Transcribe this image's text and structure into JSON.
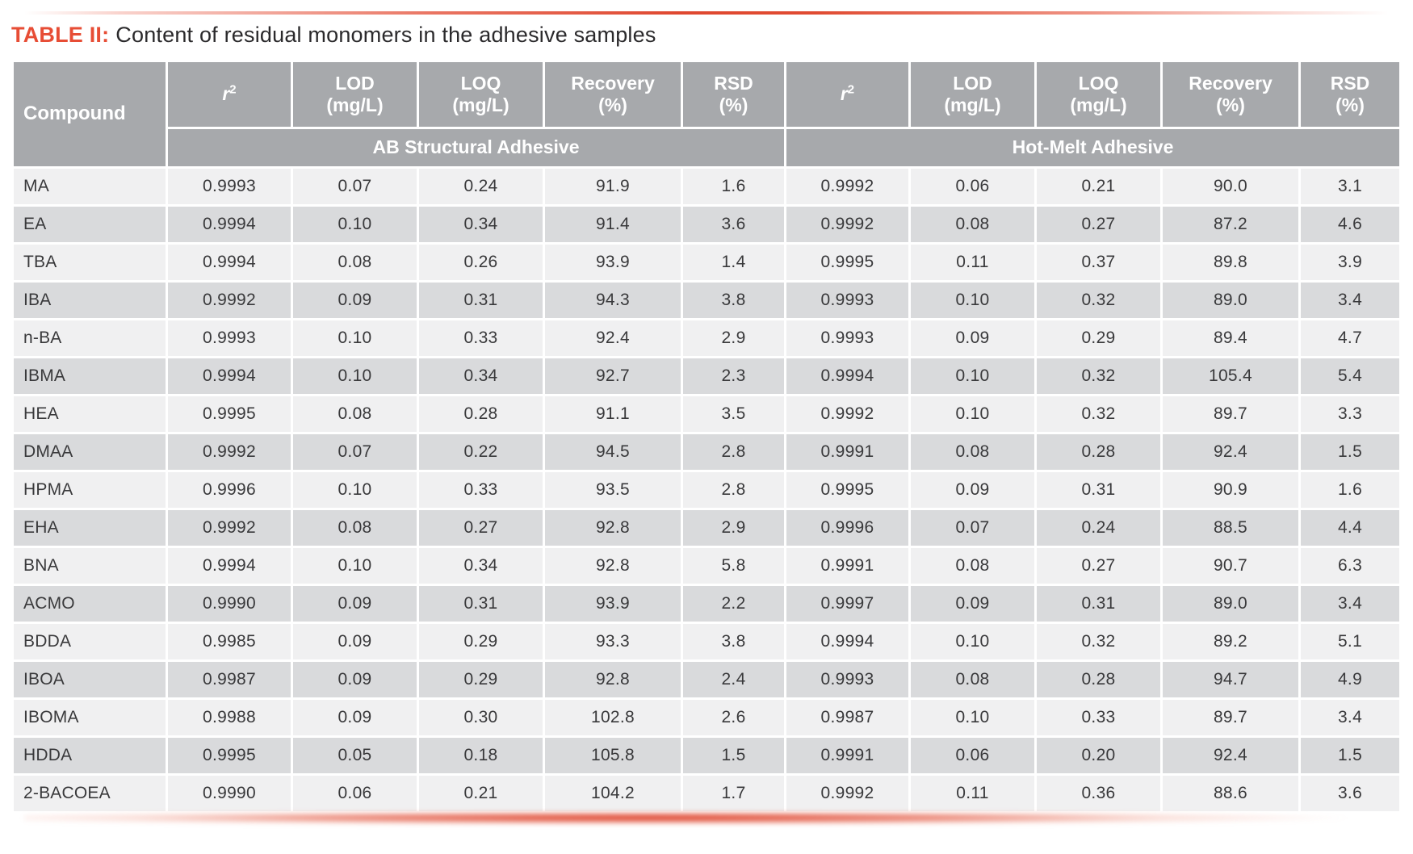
{
  "caption": {
    "label": "TABLE II:",
    "text": "Content of residual monomers in the adhesive samples"
  },
  "colors": {
    "accent_red": "#e74d35",
    "header_bg": "#a7a9ac",
    "row_light": "#f0f0f1",
    "row_dark": "#d9dadc",
    "body_text": "#39393b"
  },
  "table": {
    "headers": {
      "compound": "Compound",
      "r2_base": "r",
      "r2_sup": "2",
      "lod": "LOD\n(mg/L)",
      "loq": "LOQ\n(mg/L)",
      "recovery": "Recovery\n(%)",
      "rsd": "RSD\n(%)"
    },
    "groups": [
      "AB Structural Adhesive",
      "Hot-Melt Adhesive"
    ],
    "rows": [
      {
        "compound": "MA",
        "ab": [
          "0.9993",
          "0.07",
          "0.24",
          "91.9",
          "1.6"
        ],
        "hm": [
          "0.9992",
          "0.06",
          "0.21",
          "90.0",
          "3.1"
        ]
      },
      {
        "compound": "EA",
        "ab": [
          "0.9994",
          "0.10",
          "0.34",
          "91.4",
          "3.6"
        ],
        "hm": [
          "0.9992",
          "0.08",
          "0.27",
          "87.2",
          "4.6"
        ]
      },
      {
        "compound": "TBA",
        "ab": [
          "0.9994",
          "0.08",
          "0.26",
          "93.9",
          "1.4"
        ],
        "hm": [
          "0.9995",
          "0.11",
          "0.37",
          "89.8",
          "3.9"
        ]
      },
      {
        "compound": "IBA",
        "ab": [
          "0.9992",
          "0.09",
          "0.31",
          "94.3",
          "3.8"
        ],
        "hm": [
          "0.9993",
          "0.10",
          "0.32",
          "89.0",
          "3.4"
        ]
      },
      {
        "compound": "n-BA",
        "ab": [
          "0.9993",
          "0.10",
          "0.33",
          "92.4",
          "2.9"
        ],
        "hm": [
          "0.9993",
          "0.09",
          "0.29",
          "89.4",
          "4.7"
        ]
      },
      {
        "compound": "IBMA",
        "ab": [
          "0.9994",
          "0.10",
          "0.34",
          "92.7",
          "2.3"
        ],
        "hm": [
          "0.9994",
          "0.10",
          "0.32",
          "105.4",
          "5.4"
        ]
      },
      {
        "compound": "HEA",
        "ab": [
          "0.9995",
          "0.08",
          "0.28",
          "91.1",
          "3.5"
        ],
        "hm": [
          "0.9992",
          "0.10",
          "0.32",
          "89.7",
          "3.3"
        ]
      },
      {
        "compound": "DMAA",
        "ab": [
          "0.9992",
          "0.07",
          "0.22",
          "94.5",
          "2.8"
        ],
        "hm": [
          "0.9991",
          "0.08",
          "0.28",
          "92.4",
          "1.5"
        ]
      },
      {
        "compound": "HPMA",
        "ab": [
          "0.9996",
          "0.10",
          "0.33",
          "93.5",
          "2.8"
        ],
        "hm": [
          "0.9995",
          "0.09",
          "0.31",
          "90.9",
          "1.6"
        ]
      },
      {
        "compound": "EHA",
        "ab": [
          "0.9992",
          "0.08",
          "0.27",
          "92.8",
          "2.9"
        ],
        "hm": [
          "0.9996",
          "0.07",
          "0.24",
          "88.5",
          "4.4"
        ]
      },
      {
        "compound": "BNA",
        "ab": [
          "0.9994",
          "0.10",
          "0.34",
          "92.8",
          "5.8"
        ],
        "hm": [
          "0.9991",
          "0.08",
          "0.27",
          "90.7",
          "6.3"
        ]
      },
      {
        "compound": "ACMO",
        "ab": [
          "0.9990",
          "0.09",
          "0.31",
          "93.9",
          "2.2"
        ],
        "hm": [
          "0.9997",
          "0.09",
          "0.31",
          "89.0",
          "3.4"
        ]
      },
      {
        "compound": "BDDA",
        "ab": [
          "0.9985",
          "0.09",
          "0.29",
          "93.3",
          "3.8"
        ],
        "hm": [
          "0.9994",
          "0.10",
          "0.32",
          "89.2",
          "5.1"
        ]
      },
      {
        "compound": "IBOA",
        "ab": [
          "0.9987",
          "0.09",
          "0.29",
          "92.8",
          "2.4"
        ],
        "hm": [
          "0.9993",
          "0.08",
          "0.28",
          "94.7",
          "4.9"
        ]
      },
      {
        "compound": "IBOMA",
        "ab": [
          "0.9988",
          "0.09",
          "0.30",
          "102.8",
          "2.6"
        ],
        "hm": [
          "0.9987",
          "0.10",
          "0.33",
          "89.7",
          "3.4"
        ]
      },
      {
        "compound": "HDDA",
        "ab": [
          "0.9995",
          "0.05",
          "0.18",
          "105.8",
          "1.5"
        ],
        "hm": [
          "0.9991",
          "0.06",
          "0.20",
          "92.4",
          "1.5"
        ]
      },
      {
        "compound": "2-BACOEA",
        "ab": [
          "0.9990",
          "0.06",
          "0.21",
          "104.2",
          "1.7"
        ],
        "hm": [
          "0.9992",
          "0.11",
          "0.36",
          "88.6",
          "3.6"
        ]
      }
    ]
  }
}
